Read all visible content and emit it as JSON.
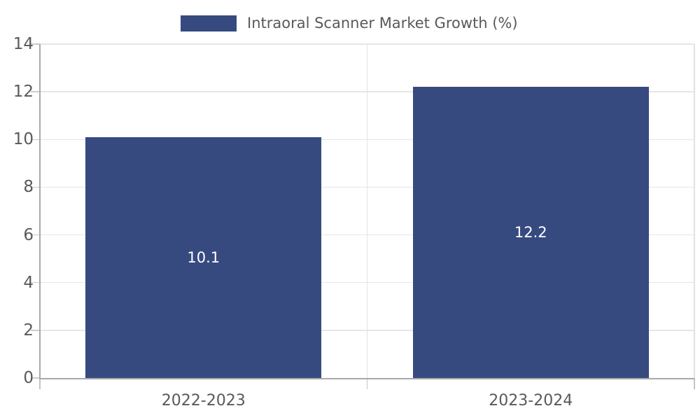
{
  "legend": {
    "label": "Intraoral Scanner Market Growth (%)"
  },
  "chart_data": {
    "type": "bar",
    "title": "Intraoral Scanner Market Growth (%)",
    "categories": [
      "2022-2023",
      "2023-2024"
    ],
    "series": [
      {
        "name": "Intraoral Scanner Market Growth (%)",
        "values": [
          10.1,
          12.2
        ]
      }
    ],
    "bar_labels": [
      "10.1",
      "12.2"
    ],
    "xlabel": "",
    "ylabel": "",
    "ylim": [
      0,
      14
    ],
    "yticks": [
      0,
      2,
      4,
      6,
      8,
      10,
      12,
      14
    ],
    "grid": true,
    "legend_position": "top-center",
    "colors": {
      "bar": "#374A80",
      "bar_value_text": "#ffffff",
      "tick_text": "#595959",
      "axis_line": "#a9a9a9",
      "gridline": "#e6e6e6"
    }
  }
}
